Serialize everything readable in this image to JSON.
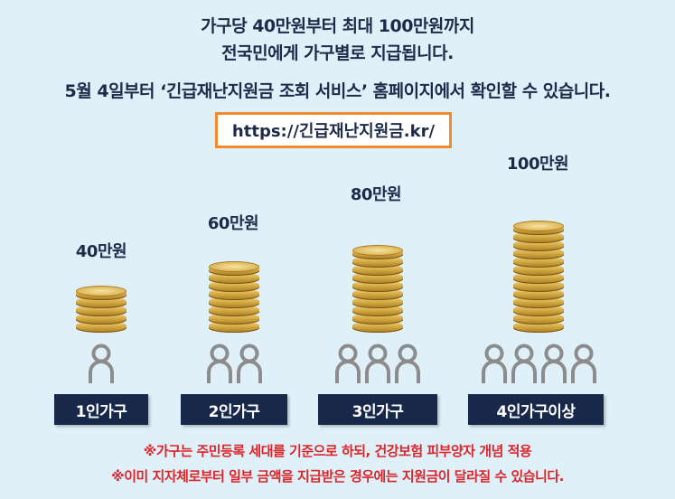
{
  "header": {
    "line1": "가구당 40만원부터 최대 100만원까지",
    "line2": "전국민에게 가구별로 지급됩니다.",
    "line3": "5월 4일부터 ‘긴급재난지원금 조회 서비스’ 홈페이지에서 확인할 수 있습니다."
  },
  "url": "https://긴급재난지원금.kr/",
  "groups": [
    {
      "amount": "40만원",
      "label": "1인가구",
      "people": 1,
      "coins": 5
    },
    {
      "amount": "60만원",
      "label": "2인가구",
      "people": 2,
      "coins": 8
    },
    {
      "amount": "80만원",
      "label": "3인가구",
      "people": 3,
      "coins": 10
    },
    {
      "amount": "100만원",
      "label": "4인가구이상",
      "people": 4,
      "coins": 13
    }
  ],
  "notes": {
    "note1": "※가구는 주민등록 세대를 기준으로 하되, 건강보험 피부양자 개념 적용",
    "note2": "※이미 지자체로부터 일부 금액을 지급받은 경우에는 지원금이 달라질 수 있습니다."
  },
  "colors": {
    "background": "#dff0f8",
    "navy": "#17284b",
    "accent_orange": "#f08a2c",
    "note_red": "#d8262b",
    "coin_gold": "#d6ad48",
    "person_gray": "#8c8c8c"
  },
  "icons": {
    "person": "person-outline-icon",
    "coin": "gold-coin-stack"
  }
}
